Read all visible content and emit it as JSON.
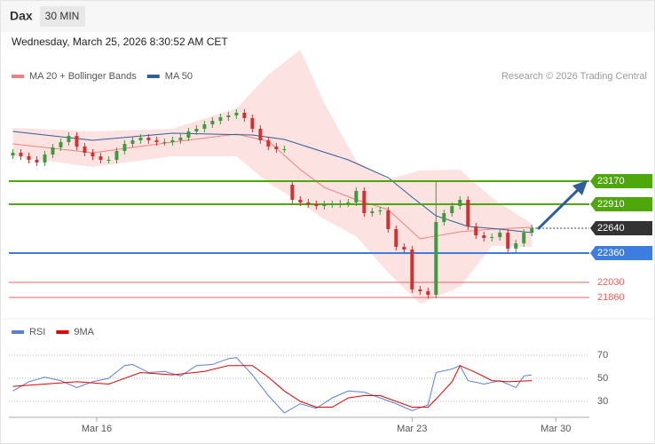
{
  "header": {
    "title": "Dax",
    "interval": "30 MIN",
    "date": "Wednesday, March 25, 2026 8:30:52 AM CET",
    "credit": "Research © 2026 Trading Central"
  },
  "chart_data": [
    {
      "type": "candlestick",
      "up_color": "#3f9a3f",
      "down_color": "#cc3333",
      "xlim": [
        -0.5,
        72.2
      ],
      "ylim": [
        21630,
        24610
      ],
      "open": [
        23460,
        23490,
        23450,
        23410,
        23380,
        23470,
        23550,
        23610,
        23680,
        23560,
        23490,
        23450,
        23410,
        23410,
        23510,
        23590,
        23630,
        23660,
        23630,
        23610,
        23610,
        23630,
        23660,
        23730,
        23760,
        23810,
        23850,
        23890,
        23910,
        23940,
        23880,
        23760,
        23630,
        23560,
        23530,
        23130,
        22960,
        22930,
        22910,
        22890,
        22910,
        22910,
        22920,
        22930,
        23060,
        22810,
        22830,
        22840,
        22630,
        22430,
        22400,
        21950,
        21930,
        21890,
        22710,
        22810,
        22890,
        22960,
        22660,
        22560,
        22530,
        22540,
        22590,
        22410,
        22470,
        22590
      ],
      "high": [
        23530,
        23530,
        23490,
        23450,
        23510,
        23590,
        23650,
        23720,
        23720,
        23600,
        23530,
        23490,
        23450,
        23550,
        23630,
        23670,
        23700,
        23700,
        23670,
        23650,
        23670,
        23700,
        23770,
        23800,
        23850,
        23890,
        23930,
        23950,
        23980,
        23980,
        23920,
        23800,
        23670,
        23600,
        23570,
        23160,
        23000,
        22970,
        22950,
        22950,
        22950,
        22960,
        22970,
        23100,
        23100,
        22870,
        22880,
        22880,
        22670,
        22470,
        22440,
        21990,
        21970,
        23160,
        22850,
        22930,
        23000,
        23000,
        22700,
        22600,
        22580,
        22630,
        22630,
        22510,
        22630,
        22680
      ],
      "low": [
        23420,
        23410,
        23370,
        23340,
        23340,
        23430,
        23510,
        23570,
        23520,
        23450,
        23410,
        23370,
        23370,
        23370,
        23470,
        23550,
        23590,
        23590,
        23570,
        23570,
        23570,
        23590,
        23620,
        23690,
        23720,
        23770,
        23810,
        23850,
        23870,
        23840,
        23720,
        23590,
        23520,
        23490,
        23490,
        22920,
        22890,
        22870,
        22850,
        22850,
        22870,
        22870,
        22880,
        22890,
        22770,
        22770,
        22790,
        22590,
        22390,
        22360,
        21910,
        21890,
        21850,
        21850,
        22670,
        22770,
        22850,
        22620,
        22520,
        22490,
        22490,
        22500,
        22370,
        22370,
        22430,
        22550
      ],
      "close": [
        23490,
        23450,
        23410,
        23380,
        23470,
        23550,
        23610,
        23680,
        23560,
        23490,
        23450,
        23410,
        23410,
        23510,
        23590,
        23630,
        23660,
        23630,
        23610,
        23610,
        23630,
        23660,
        23730,
        23760,
        23810,
        23850,
        23890,
        23910,
        23940,
        23880,
        23760,
        23630,
        23560,
        23530,
        23530,
        22960,
        22930,
        22910,
        22890,
        22910,
        22910,
        22920,
        22930,
        23060,
        22810,
        22830,
        22840,
        22630,
        22430,
        22400,
        21950,
        21930,
        21890,
        22710,
        22810,
        22890,
        22960,
        22660,
        22560,
        22530,
        22540,
        22590,
        22410,
        22470,
        22590,
        22640
      ],
      "series": [
        {
          "name": "MA 20 + Bollinger Bands",
          "color": "#f08080",
          "band_color": "#fde2e2",
          "x": [
            0,
            10,
            20,
            28,
            32,
            36,
            39,
            43,
            47,
            51,
            56,
            60,
            65
          ],
          "values": [
            23590,
            23490,
            23610,
            23700,
            23620,
            23300,
            23100,
            22960,
            22850,
            22520,
            22600,
            22630,
            22650
          ],
          "upper": [
            23770,
            23730,
            23760,
            23990,
            24370,
            24650,
            24050,
            23400,
            23190,
            23290,
            23300,
            22980,
            22690
          ],
          "lower": [
            23450,
            23330,
            23450,
            23450,
            23150,
            22930,
            22740,
            22550,
            22140,
            21790,
            21980,
            22440,
            22430
          ]
        },
        {
          "name": "MA 50",
          "color": "#2f5f9a",
          "x": [
            0,
            10,
            20,
            30,
            34,
            42,
            47,
            50,
            53,
            57,
            61,
            65
          ],
          "values": [
            23730,
            23630,
            23710,
            23690,
            23640,
            23410,
            23210,
            22990,
            22780,
            22660,
            22630,
            22590
          ]
        }
      ],
      "levels": [
        {
          "value": 23170,
          "color": "#4ea80c",
          "tag": true
        },
        {
          "value": 22910,
          "color": "#4ea80c",
          "tag": true
        },
        {
          "value": 22640,
          "color": "#333333",
          "tag": true,
          "dash": true
        },
        {
          "value": 22360,
          "color": "#3d7de0",
          "tag": true
        },
        {
          "value": 22030,
          "color": "#e06666",
          "tag": false
        },
        {
          "value": 21860,
          "color": "#e06666",
          "tag": false
        }
      ]
    },
    {
      "type": "line",
      "xlim": [
        -0.5,
        72.2
      ],
      "ylim": [
        17.7,
        85.4
      ],
      "yticks": [
        70,
        50,
        30
      ],
      "grid": true,
      "xticks": [
        {
          "value": 10.5,
          "label": "Mar 16"
        },
        {
          "value": 50,
          "label": "Mar 23"
        },
        {
          "value": 68,
          "label": "Mar 30"
        }
      ],
      "series": [
        {
          "name": "RSI",
          "color": "#5b7fd6",
          "x": [
            0,
            2,
            4,
            6,
            8,
            10,
            12,
            14,
            15,
            17,
            19,
            21,
            23,
            25,
            27,
            28,
            30,
            32,
            34,
            36,
            38,
            40,
            42,
            44,
            46,
            48,
            50,
            52,
            53,
            55,
            56,
            57,
            59,
            61,
            63,
            64,
            65
          ],
          "values": [
            39,
            47,
            51,
            48,
            42,
            47,
            50,
            61,
            62,
            55,
            56,
            52,
            61,
            62,
            67,
            68,
            53,
            35,
            20,
            28,
            24,
            33,
            39,
            38,
            33,
            28,
            22,
            27,
            55,
            58,
            61,
            48,
            45,
            48,
            42,
            52,
            53
          ]
        },
        {
          "name": "9MA",
          "color": "#e00000",
          "x": [
            0,
            4,
            8,
            12,
            16,
            20,
            24,
            27,
            30,
            32,
            34,
            36,
            38,
            40,
            42,
            44,
            46,
            48,
            50,
            52,
            53,
            55,
            56,
            58,
            60,
            62,
            65
          ],
          "values": [
            43,
            45,
            47,
            45,
            55,
            53,
            56,
            61,
            61,
            51,
            39,
            30,
            25,
            25,
            33,
            35,
            35,
            30,
            25,
            25,
            32,
            47,
            61,
            55,
            48,
            47,
            48
          ]
        }
      ]
    }
  ]
}
